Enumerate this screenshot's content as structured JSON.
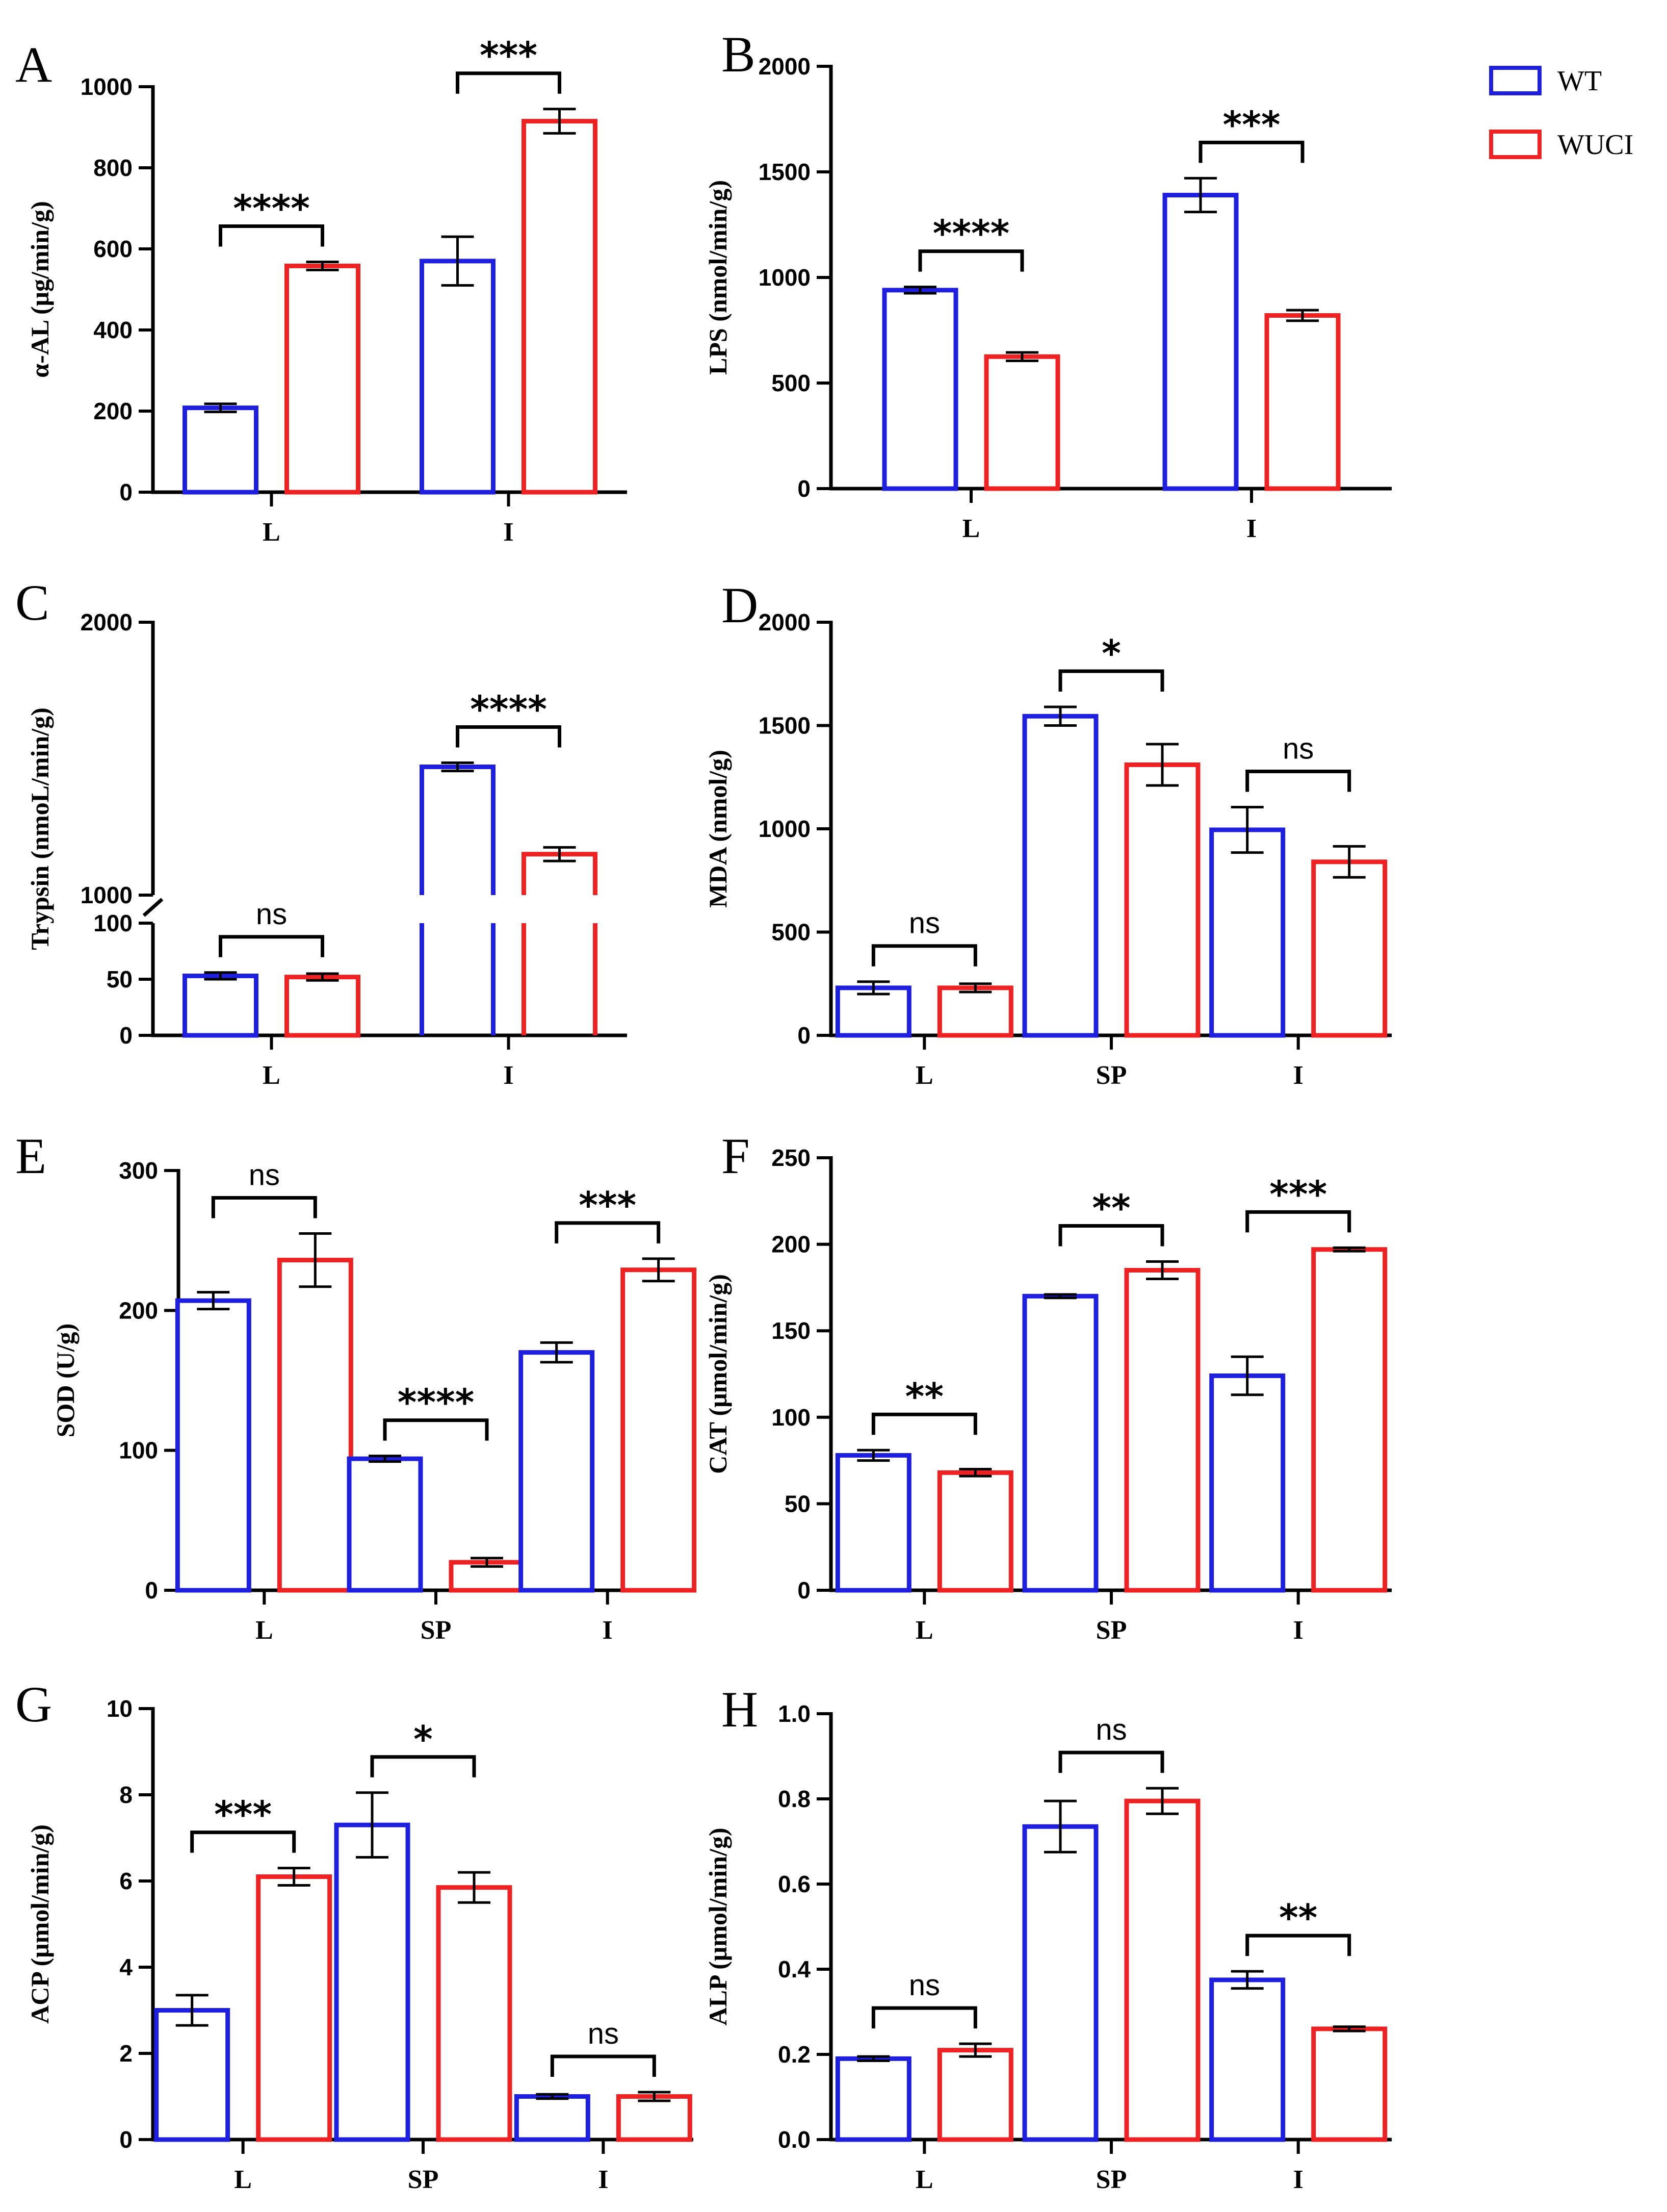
{
  "legend": {
    "entries": [
      {
        "label": "WT",
        "color": "#1f1fe0"
      },
      {
        "label": "WUCI",
        "color": "#ee2222"
      }
    ]
  },
  "chart_data": [
    {
      "panel": "A",
      "type": "bar",
      "ylabel": "α-AL (μg/min/g)",
      "categories": [
        "L",
        "I"
      ],
      "ylim": [
        0,
        1000
      ],
      "yticks": [
        0,
        200,
        400,
        600,
        800,
        1000
      ],
      "series": [
        {
          "name": "WT",
          "values": [
            208,
            570
          ],
          "errors": [
            10,
            60
          ]
        },
        {
          "name": "WUCI",
          "values": [
            558,
            915
          ],
          "errors": [
            10,
            30
          ]
        }
      ],
      "significance": [
        "****",
        "***"
      ]
    },
    {
      "panel": "B",
      "type": "bar",
      "ylabel": "LPS (nmol/min/g)",
      "categories": [
        "L",
        "I"
      ],
      "ylim": [
        0,
        2000
      ],
      "yticks": [
        0,
        500,
        1000,
        1500,
        2000
      ],
      "series": [
        {
          "name": "WT",
          "values": [
            940,
            1390
          ],
          "errors": [
            15,
            80
          ]
        },
        {
          "name": "WUCI",
          "values": [
            625,
            820
          ],
          "errors": [
            20,
            25
          ]
        }
      ],
      "significance": [
        "****",
        "***"
      ]
    },
    {
      "panel": "C",
      "type": "bar",
      "ylabel": "Trypsin (nmoL/min/g)",
      "categories": [
        "L",
        "I"
      ],
      "broken_axis": {
        "lower": [
          0,
          100
        ],
        "upper": [
          1000,
          2000
        ]
      },
      "yticks": [
        0,
        50,
        100,
        1000,
        2000
      ],
      "series": [
        {
          "name": "WT",
          "values": [
            53,
            1470
          ],
          "errors": [
            3,
            15
          ]
        },
        {
          "name": "WUCI",
          "values": [
            52,
            1150
          ],
          "errors": [
            3,
            25
          ]
        }
      ],
      "significance": [
        "ns",
        "****"
      ]
    },
    {
      "panel": "D",
      "type": "bar",
      "ylabel": "MDA (nmol/g)",
      "categories": [
        "L",
        "SP",
        "I"
      ],
      "ylim": [
        0,
        2000
      ],
      "yticks": [
        0,
        500,
        1000,
        1500,
        2000
      ],
      "series": [
        {
          "name": "WT",
          "values": [
            230,
            1545,
            995
          ],
          "errors": [
            30,
            45,
            110
          ]
        },
        {
          "name": "WUCI",
          "values": [
            230,
            1310,
            840
          ],
          "errors": [
            20,
            100,
            75
          ]
        }
      ],
      "significance": [
        "ns",
        "*",
        "ns"
      ]
    },
    {
      "panel": "E",
      "type": "bar",
      "ylabel": "SOD (U/g)",
      "categories": [
        "L",
        "SP",
        "I"
      ],
      "ylim": [
        0,
        300
      ],
      "yticks": [
        0,
        100,
        200,
        300
      ],
      "series": [
        {
          "name": "WT",
          "values": [
            207,
            94,
            170
          ],
          "errors": [
            6,
            2,
            7
          ]
        },
        {
          "name": "WUCI",
          "values": [
            236,
            20,
            229
          ],
          "errors": [
            19,
            3,
            8
          ]
        }
      ],
      "significance": [
        "ns",
        "****",
        "***"
      ]
    },
    {
      "panel": "F",
      "type": "bar",
      "ylabel": "CAT (μmol/min/g)",
      "categories": [
        "L",
        "SP",
        "I"
      ],
      "ylim": [
        0,
        250
      ],
      "yticks": [
        0,
        50,
        100,
        150,
        200,
        250
      ],
      "series": [
        {
          "name": "WT",
          "values": [
            78,
            170,
            124
          ],
          "errors": [
            3,
            1,
            11
          ]
        },
        {
          "name": "WUCI",
          "values": [
            68,
            185,
            197
          ],
          "errors": [
            2,
            5,
            1
          ]
        }
      ],
      "significance": [
        "**",
        "**",
        "***"
      ]
    },
    {
      "panel": "G",
      "type": "bar",
      "ylabel": "ACP (μmol/min/g)",
      "categories": [
        "L",
        "SP",
        "I"
      ],
      "ylim": [
        0,
        10
      ],
      "yticks": [
        0,
        2,
        4,
        6,
        8,
        10
      ],
      "series": [
        {
          "name": "WT",
          "values": [
            3.0,
            7.3,
            1.0
          ],
          "errors": [
            0.35,
            0.75,
            0.05
          ]
        },
        {
          "name": "WUCI",
          "values": [
            6.1,
            5.85,
            1.0
          ],
          "errors": [
            0.2,
            0.35,
            0.1
          ]
        }
      ],
      "significance": [
        "***",
        "*",
        "ns"
      ]
    },
    {
      "panel": "H",
      "type": "bar",
      "ylabel": "ALP (μmol/min/g)",
      "categories": [
        "L",
        "SP",
        "I"
      ],
      "ylim": [
        0,
        1.0
      ],
      "yticks": [
        0.0,
        0.2,
        0.4,
        0.6,
        0.8,
        1.0
      ],
      "series": [
        {
          "name": "WT",
          "values": [
            0.19,
            0.735,
            0.375
          ],
          "errors": [
            0.005,
            0.06,
            0.02
          ]
        },
        {
          "name": "WUCI",
          "values": [
            0.21,
            0.795,
            0.26
          ],
          "errors": [
            0.015,
            0.03,
            0.005
          ]
        }
      ],
      "significance": [
        "ns",
        "ns",
        "**"
      ]
    }
  ]
}
